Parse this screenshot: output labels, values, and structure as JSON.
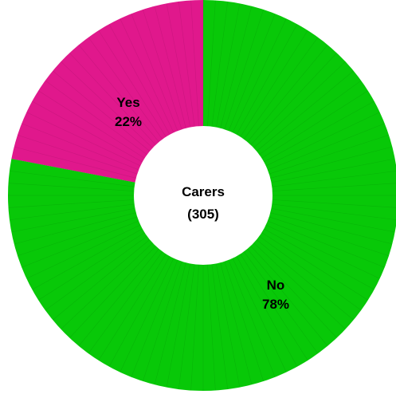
{
  "chart_data": {
    "type": "pie",
    "donut": true,
    "center_label": {
      "line1": "Carers",
      "line2": "(305)"
    },
    "slices": [
      {
        "name": "Yes",
        "percent_label": "22%",
        "value": 22,
        "color": "#e0188c"
      },
      {
        "name": "No",
        "percent_label": "78%",
        "value": 78,
        "color": "#08c808"
      }
    ],
    "start_angle": "12 o'clock",
    "direction": "counterclockwise for Yes, remaining for No"
  }
}
